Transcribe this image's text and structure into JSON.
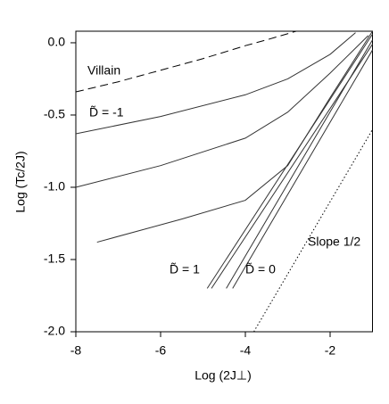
{
  "chart_data": {
    "type": "line",
    "xlabel": "Log (2J⊥)",
    "ylabel": "Log (Tc/2J)",
    "xlim": [
      -8,
      -1
    ],
    "ylim": [
      -2,
      0.08
    ],
    "xticks": [
      -8,
      -6,
      -4,
      -2
    ],
    "yticks": [
      {
        "value": 0,
        "label": "0.0"
      },
      -0.5,
      {
        "value": -1,
        "label": "-1.0"
      },
      -1.5,
      {
        "value": -2,
        "label": "-2.0"
      }
    ],
    "series": [
      {
        "color": "#000000",
        "style": "dashed",
        "x": [
          -8,
          -7,
          -6,
          -5,
          -4,
          -3.5,
          -2.8
        ],
        "values": [
          -0.34,
          -0.27,
          -0.19,
          -0.11,
          -0.02,
          0.02,
          0.08
        ]
      },
      {
        "color": "#333333",
        "style": "solid",
        "x": [
          -8,
          -6,
          -4,
          -3,
          -2,
          -1.4
        ],
        "values": [
          -0.63,
          -0.51,
          -0.36,
          -0.25,
          -0.08,
          0.07
        ]
      },
      {
        "color": "#333333",
        "style": "solid",
        "x": [
          -8,
          -6,
          -4,
          -3,
          -2,
          -1.1
        ],
        "values": [
          -1.0,
          -0.85,
          -0.66,
          -0.48,
          -0.21,
          0.05
        ]
      },
      {
        "color": "#333333",
        "style": "solid",
        "x": [
          -7.5,
          -5.5,
          -4,
          -3,
          -2,
          -1
        ],
        "values": [
          -1.38,
          -1.22,
          -1.09,
          -0.85,
          -0.38,
          0.08
        ]
      },
      {
        "color": "#333333",
        "style": "solid",
        "x": [
          -4.9,
          -1
        ],
        "values": [
          -1.7,
          0.06
        ]
      },
      {
        "color": "#333333",
        "style": "solid",
        "x": [
          -4.8,
          -1
        ],
        "values": [
          -1.7,
          -0.01
        ]
      },
      {
        "color": "#333333",
        "style": "solid",
        "x": [
          -4.45,
          -1
        ],
        "values": [
          -1.7,
          0.02
        ]
      },
      {
        "color": "#333333",
        "style": "solid",
        "x": [
          -4.3,
          -1
        ],
        "values": [
          -1.7,
          -0.05
        ]
      },
      {
        "color": "#000000",
        "style": "dotted",
        "x": [
          -3.8,
          -1
        ],
        "values": [
          -2.0,
          -0.6
        ]
      }
    ],
    "annotations": [
      "Villain",
      "D̃ = -1",
      "D̃ = 1",
      "D̃ = 0",
      "Slope 1/2"
    ]
  }
}
